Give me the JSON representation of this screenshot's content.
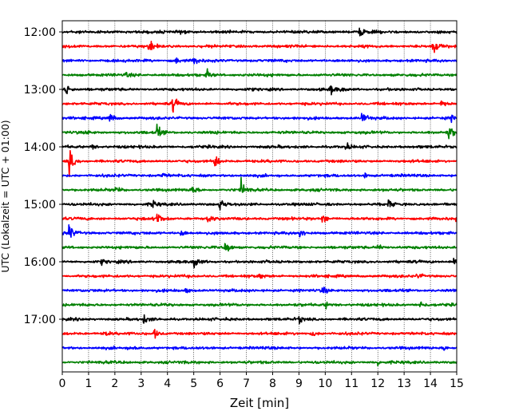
{
  "chart_data": {
    "type": "line",
    "xlabel": "Zeit  [min]",
    "ylabel": "UTC (Lokalzeit = UTC + 01:00)",
    "xlim": [
      0,
      15
    ],
    "x_ticks": [
      0,
      1,
      2,
      3,
      4,
      5,
      6,
      7,
      8,
      9,
      10,
      11,
      12,
      13,
      14,
      15
    ],
    "y_ticks": [
      "12:00",
      "13:00",
      "14:00",
      "15:00",
      "16:00",
      "17:00"
    ],
    "grid": "vertical dotted",
    "trace_colors": [
      "#000000",
      "#ff0000",
      "#0000ff",
      "#008000"
    ],
    "traces": [
      {
        "start": "12:00",
        "events": [
          {
            "x": 11.3,
            "amp": 5
          },
          {
            "x": 4.5,
            "amp": 2.2
          }
        ]
      },
      {
        "start": "12:15",
        "events": [
          {
            "x": 3.3,
            "amp": 7
          },
          {
            "x": 14.1,
            "amp": 7
          }
        ]
      },
      {
        "start": "12:30",
        "events": [
          {
            "x": 5.0,
            "amp": 4
          },
          {
            "x": 4.3,
            "amp": 3
          }
        ]
      },
      {
        "start": "12:45",
        "events": [
          {
            "x": 5.5,
            "amp": 4
          },
          {
            "x": 2.4,
            "amp": 2
          }
        ]
      },
      {
        "start": "13:00",
        "events": [
          {
            "x": 0.1,
            "amp": 7
          },
          {
            "x": 10.2,
            "amp": 4
          },
          {
            "x": 10.6,
            "amp": 2
          }
        ]
      },
      {
        "start": "13:15",
        "events": [
          {
            "x": 4.2,
            "amp": 7
          },
          {
            "x": 14.4,
            "amp": 3
          }
        ]
      },
      {
        "start": "13:30",
        "events": [
          {
            "x": 1.8,
            "amp": 5
          },
          {
            "x": 11.4,
            "amp": 6
          },
          {
            "x": 14.8,
            "amp": 2
          }
        ]
      },
      {
        "start": "13:45",
        "events": [
          {
            "x": 3.6,
            "amp": 6
          },
          {
            "x": 14.7,
            "amp": 7
          },
          {
            "x": 0.9,
            "amp": 2
          }
        ]
      },
      {
        "start": "14:00",
        "events": [
          {
            "x": 10.8,
            "amp": 3
          },
          {
            "x": 1.1,
            "amp": 2
          }
        ]
      },
      {
        "start": "14:15",
        "events": [
          {
            "x": 0.25,
            "amp": 12
          },
          {
            "x": 5.8,
            "amp": 7
          }
        ]
      },
      {
        "start": "14:30",
        "events": [
          {
            "x": 3.8,
            "amp": 2
          },
          {
            "x": 11.5,
            "amp": 2
          }
        ]
      },
      {
        "start": "14:45",
        "events": [
          {
            "x": 6.8,
            "amp": 8
          },
          {
            "x": 4.9,
            "amp": 6
          },
          {
            "x": 2.0,
            "amp": 3
          }
        ]
      },
      {
        "start": "15:00",
        "events": [
          {
            "x": 6.0,
            "amp": 6
          },
          {
            "x": 3.4,
            "amp": 4
          },
          {
            "x": 12.4,
            "amp": 3
          }
        ]
      },
      {
        "start": "15:15",
        "events": [
          {
            "x": 3.6,
            "amp": 7
          },
          {
            "x": 9.9,
            "amp": 5
          },
          {
            "x": 15.0,
            "amp": 6
          },
          {
            "x": 5.5,
            "amp": 4
          }
        ]
      },
      {
        "start": "15:30",
        "events": [
          {
            "x": 0.25,
            "amp": 8
          },
          {
            "x": 9.0,
            "amp": 5
          },
          {
            "x": 4.5,
            "amp": 3
          }
        ]
      },
      {
        "start": "15:45",
        "events": [
          {
            "x": 6.2,
            "amp": 7
          },
          {
            "x": 12.0,
            "amp": 3
          }
        ]
      },
      {
        "start": "16:00",
        "events": [
          {
            "x": 5.0,
            "amp": 6
          },
          {
            "x": 14.9,
            "amp": 4
          },
          {
            "x": 1.5,
            "amp": 2
          }
        ]
      },
      {
        "start": "16:15",
        "events": [
          {
            "x": 13.5,
            "amp": 3
          },
          {
            "x": 7.5,
            "amp": 2
          }
        ]
      },
      {
        "start": "16:30",
        "events": [
          {
            "x": 9.9,
            "amp": 4
          },
          {
            "x": 4.7,
            "amp": 2
          }
        ]
      },
      {
        "start": "16:45",
        "events": [
          {
            "x": 13.6,
            "amp": 4
          },
          {
            "x": 10.0,
            "amp": 3
          }
        ]
      },
      {
        "start": "17:00",
        "events": [
          {
            "x": 3.1,
            "amp": 4
          },
          {
            "x": 9.0,
            "amp": 3
          }
        ]
      },
      {
        "start": "17:15",
        "events": [
          {
            "x": 1.6,
            "amp": 3
          },
          {
            "x": 3.5,
            "amp": 4
          },
          {
            "x": 9.5,
            "amp": 3
          }
        ]
      },
      {
        "start": "17:30",
        "events": [
          {
            "x": 14.5,
            "amp": 2
          },
          {
            "x": 2.6,
            "amp": 2
          }
        ]
      },
      {
        "start": "17:45",
        "events": [
          {
            "x": 12.0,
            "amp": 2
          }
        ]
      }
    ]
  }
}
